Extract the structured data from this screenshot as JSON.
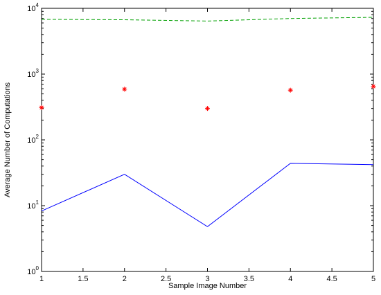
{
  "chart_data": {
    "type": "line",
    "xlabel": "Sample Image Number",
    "ylabel": "Average Number of Computations",
    "xlim": [
      1,
      5
    ],
    "ylim": [
      1,
      10000
    ],
    "y_scale": "log",
    "grid": false,
    "x_ticks": [
      1,
      1.5,
      2,
      2.5,
      3,
      3.5,
      4,
      4.5,
      5
    ],
    "x_tick_labels": [
      "1",
      "1.5",
      "2",
      "2.5",
      "3",
      "3.5",
      "4",
      "4.5",
      "5"
    ],
    "y_ticks": [
      1,
      10,
      100,
      1000,
      10000
    ],
    "y_tick_labels": [
      {
        "base": "10",
        "exp": "0"
      },
      {
        "base": "10",
        "exp": "1"
      },
      {
        "base": "10",
        "exp": "2"
      },
      {
        "base": "10",
        "exp": "3"
      },
      {
        "base": "10",
        "exp": "4"
      }
    ],
    "series": [
      {
        "style": "dashed",
        "color": "#00a000",
        "x": [
          1,
          2,
          3,
          4,
          5
        ],
        "y": [
          6800,
          6700,
          6400,
          7000,
          7300
        ]
      },
      {
        "style": "markers",
        "marker": "asterisk",
        "color": "#ff0000",
        "x": [
          1,
          2,
          3,
          4,
          5
        ],
        "y": [
          310,
          590,
          300,
          570,
          650
        ]
      },
      {
        "style": "solid",
        "color": "#0000ff",
        "x": [
          1,
          2,
          3,
          4,
          5
        ],
        "y": [
          8.3,
          30,
          4.8,
          44,
          42
        ]
      }
    ]
  }
}
